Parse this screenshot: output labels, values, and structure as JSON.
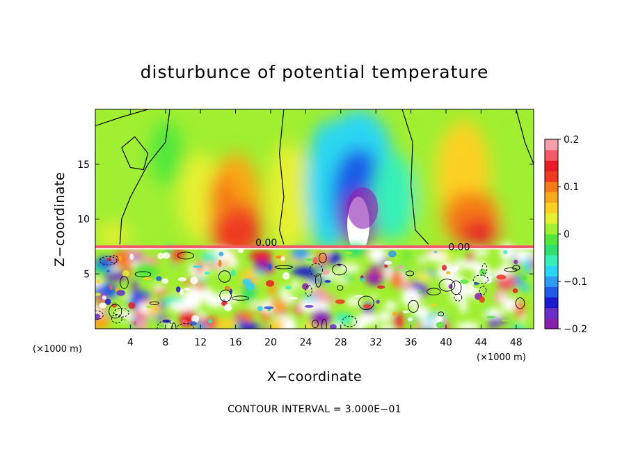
{
  "chart_data": {
    "type": "heatmap",
    "title": "disturbunce of potential temperature",
    "xlabel": "X−coordinate",
    "ylabel": "Z−coordinate",
    "x_unit": "(×1000 m)",
    "z_unit": "(×1000 m)",
    "x_range": [
      0,
      50
    ],
    "z_range": [
      0,
      20
    ],
    "x_ticks": [
      4,
      8,
      12,
      16,
      20,
      24,
      28,
      32,
      36,
      40,
      44,
      48
    ],
    "z_ticks": [
      5,
      10,
      15
    ],
    "colorbar": {
      "range": [
        -0.2,
        0.2
      ],
      "ticks": [
        {
          "value": 0.2,
          "label": "0.2"
        },
        {
          "value": 0.1,
          "label": "0.1"
        },
        {
          "value": 0,
          "label": "0"
        },
        {
          "value": -0.1,
          "label": "−0.1"
        },
        {
          "value": -0.2,
          "label": "−0.2"
        }
      ],
      "colors": [
        "#8b1fb0",
        "#6a2fc8",
        "#1a1ad0",
        "#1f5ae8",
        "#2e9cf0",
        "#29d7f2",
        "#38f0b8",
        "#30e070",
        "#52e83a",
        "#a0ef30",
        "#e6f030",
        "#fcd020",
        "#f8a818",
        "#f47a18",
        "#ee3a20",
        "#e81c28",
        "#f25a6a",
        "#f7a0ac"
      ]
    },
    "contour_labels": [
      {
        "x": 19.5,
        "z": 7.8,
        "text": "0.00"
      },
      {
        "x": 41.5,
        "z": 7.4,
        "text": "0.00"
      }
    ],
    "contour_interval_text": "CONTOUR INTERVAL = 3.000E−01",
    "regions": [
      {
        "x": 30,
        "z": 10,
        "value": -0.23
      },
      {
        "x": 15,
        "z": 10,
        "value": 0.13
      },
      {
        "x": 43,
        "z": 10,
        "value": 0.13
      },
      {
        "x": 4,
        "z": 14,
        "value": 0.0
      }
    ]
  }
}
